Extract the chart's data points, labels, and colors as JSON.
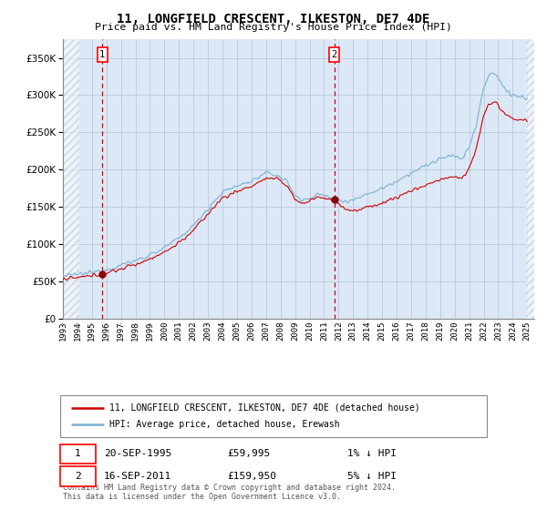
{
  "title": "11, LONGFIELD CRESCENT, ILKESTON, DE7 4DE",
  "subtitle": "Price paid vs. HM Land Registry's House Price Index (HPI)",
  "legend_line1": "11, LONGFIELD CRESCENT, ILKESTON, DE7 4DE (detached house)",
  "legend_line2": "HPI: Average price, detached house, Erewash",
  "annotation1_label": "1",
  "annotation1_date": "20-SEP-1995",
  "annotation1_price": "£59,995",
  "annotation1_hpi": "1% ↓ HPI",
  "annotation2_label": "2",
  "annotation2_date": "16-SEP-2011",
  "annotation2_price": "£159,950",
  "annotation2_hpi": "5% ↓ HPI",
  "copyright_text": "Contains HM Land Registry data © Crown copyright and database right 2024.\nThis data is licensed under the Open Government Licence v3.0.",
  "sale1_year": 1995.72,
  "sale1_price": 59995,
  "sale2_year": 2011.71,
  "sale2_price": 159950,
  "hpi_color": "#7ab0d4",
  "price_color": "#cc0000",
  "dot_color": "#880000",
  "vline_color": "#cc0000",
  "bg_color": "#dce8f5",
  "grid_color": "#b0c4d8",
  "ylim_max": 375000,
  "start_year": 1993,
  "end_year": 2025
}
